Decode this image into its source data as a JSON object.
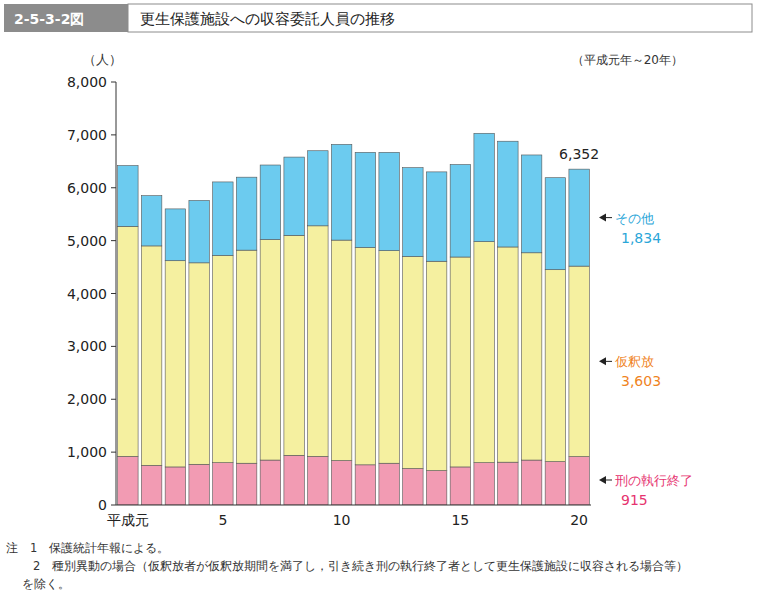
{
  "chart_data": {
    "type": "bar",
    "stacked": true,
    "figure_number": "2-5-3-2図",
    "title": "更生保護施設への収容委託人員の推移",
    "y_label": "（人）",
    "subtitle": "（平成元年～20年）",
    "total_label": "6,352",
    "categories": [
      "平成元",
      null,
      null,
      null,
      "5",
      null,
      null,
      null,
      null,
      "10",
      null,
      null,
      null,
      null,
      "15",
      null,
      null,
      null,
      null,
      "20"
    ],
    "series": [
      {
        "name": "刑の執行終了",
        "color": "#f29bb3",
        "label_color": "#e6336f",
        "last_label": "915",
        "values": [
          920,
          750,
          720,
          770,
          800,
          790,
          850,
          940,
          920,
          840,
          760,
          790,
          690,
          650,
          720,
          800,
          810,
          850,
          820,
          915
        ]
      },
      {
        "name": "仮釈放",
        "color": "#f5f0a0",
        "label_color": "#f0841e",
        "last_label": "3,603",
        "values": [
          4350,
          4150,
          3900,
          3810,
          3920,
          4030,
          4170,
          4160,
          4360,
          4170,
          4110,
          4020,
          4010,
          3960,
          3970,
          4180,
          4070,
          3920,
          3630,
          3603
        ]
      },
      {
        "name": "その他",
        "color": "#6ccbef",
        "label_color": "#2aa6d8",
        "last_label": "1,834",
        "values": [
          1150,
          950,
          980,
          1180,
          1390,
          1380,
          1410,
          1480,
          1420,
          1810,
          1800,
          1860,
          1680,
          1690,
          1750,
          2050,
          2000,
          1850,
          1740,
          1834
        ]
      }
    ],
    "ylim": [
      0,
      8000
    ],
    "yticks": [
      0,
      {
        "value": 1000,
        "label": "1,000"
      },
      {
        "value": 2000,
        "label": "2,000"
      },
      {
        "value": 3000,
        "label": "3,000"
      },
      {
        "value": 4000,
        "label": "4,000"
      },
      {
        "value": 5000,
        "label": "5,000"
      },
      {
        "value": 6000,
        "label": "6,000"
      },
      {
        "value": 7000,
        "label": "7,000"
      },
      {
        "value": 8000,
        "label": "8,000"
      }
    ],
    "grid": false,
    "notes": [
      "注　1　保護統計年報による。",
      "2　種別異動の場合（仮釈放者が仮釈放期間を満了し，引き続き刑の執行終了者として更生保護施設に収容される場合等）",
      "を除く。"
    ]
  }
}
